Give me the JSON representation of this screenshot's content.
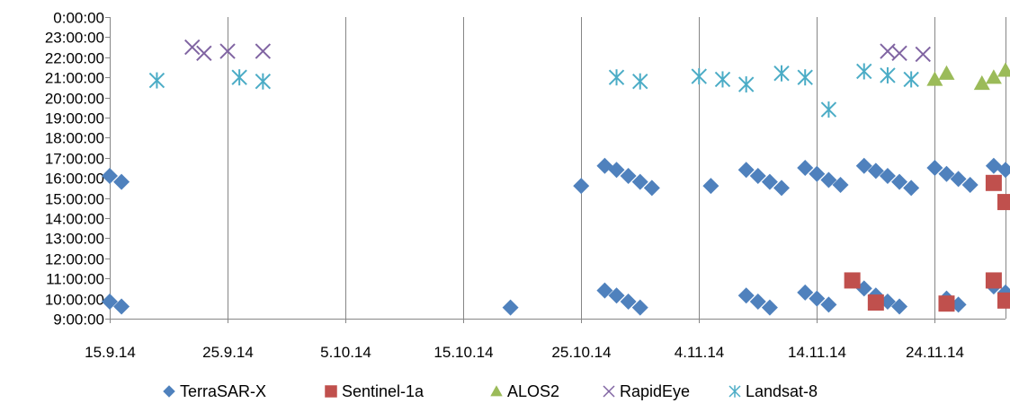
{
  "chart_data": {
    "type": "scatter",
    "x_axis": {
      "type": "date",
      "min": "2014-09-15",
      "max": "2014-11-30",
      "tick_labels": [
        "15.9.14",
        "25.9.14",
        "5.10.14",
        "15.10.14",
        "25.10.14",
        "4.11.14",
        "14.11.14",
        "24.11.14"
      ],
      "tick_dates": [
        "2014-09-15",
        "2014-09-25",
        "2014-10-05",
        "2014-10-15",
        "2014-10-25",
        "2014-11-04",
        "2014-11-14",
        "2014-11-24"
      ]
    },
    "y_axis": {
      "type": "time",
      "min_hours": 9,
      "max_hours": 24,
      "tick_labels": [
        "9:00:00",
        "10:00:00",
        "11:00:00",
        "12:00:00",
        "13:00:00",
        "14:00:00",
        "15:00:00",
        "16:00:00",
        "17:00:00",
        "18:00:00",
        "19:00:00",
        "20:00:00",
        "21:00:00",
        "22:00:00",
        "23:00:00",
        "0:00:00"
      ]
    },
    "grid": {
      "vertical": true,
      "horizontal": false
    },
    "legend_position": "bottom",
    "series": [
      {
        "name": "TerraSAR-X",
        "marker": "diamond",
        "color": "#4f81bd",
        "points": [
          [
            "2014-09-15",
            16.1
          ],
          [
            "2014-09-16",
            15.8
          ],
          [
            "2014-09-15",
            9.85
          ],
          [
            "2014-09-16",
            9.6
          ],
          [
            "2014-10-19",
            9.55
          ],
          [
            "2014-10-25",
            15.6
          ],
          [
            "2014-10-27",
            16.6
          ],
          [
            "2014-10-28",
            16.4
          ],
          [
            "2014-10-29",
            16.1
          ],
          [
            "2014-10-30",
            15.8
          ],
          [
            "2014-10-31",
            15.5
          ],
          [
            "2014-10-27",
            10.4
          ],
          [
            "2014-10-28",
            10.15
          ],
          [
            "2014-10-29",
            9.85
          ],
          [
            "2014-10-30",
            9.55
          ],
          [
            "2014-11-05",
            15.6
          ],
          [
            "2014-11-08",
            16.4
          ],
          [
            "2014-11-09",
            16.1
          ],
          [
            "2014-11-10",
            15.8
          ],
          [
            "2014-11-11",
            15.5
          ],
          [
            "2014-11-08",
            10.15
          ],
          [
            "2014-11-09",
            9.85
          ],
          [
            "2014-11-10",
            9.55
          ],
          [
            "2014-11-13",
            16.5
          ],
          [
            "2014-11-14",
            16.2
          ],
          [
            "2014-11-15",
            15.9
          ],
          [
            "2014-11-16",
            15.65
          ],
          [
            "2014-11-13",
            10.3
          ],
          [
            "2014-11-14",
            10.0
          ],
          [
            "2014-11-15",
            9.7
          ],
          [
            "2014-11-18",
            16.6
          ],
          [
            "2014-11-19",
            16.35
          ],
          [
            "2014-11-20",
            16.1
          ],
          [
            "2014-11-21",
            15.8
          ],
          [
            "2014-11-22",
            15.5
          ],
          [
            "2014-11-18",
            10.5
          ],
          [
            "2014-11-19",
            10.15
          ],
          [
            "2014-11-20",
            9.85
          ],
          [
            "2014-11-21",
            9.6
          ],
          [
            "2014-11-24",
            16.5
          ],
          [
            "2014-11-25",
            16.2
          ],
          [
            "2014-11-26",
            15.95
          ],
          [
            "2014-11-27",
            15.65
          ],
          [
            "2014-11-25",
            10.0
          ],
          [
            "2014-11-26",
            9.7
          ],
          [
            "2014-11-29",
            16.6
          ],
          [
            "2014-11-30",
            16.4
          ],
          [
            "2014-11-29",
            10.6
          ],
          [
            "2014-11-30",
            10.3
          ]
        ]
      },
      {
        "name": "Sentinel-1a",
        "marker": "square",
        "color": "#c0504d",
        "points": [
          [
            "2014-11-17",
            10.9
          ],
          [
            "2014-11-19",
            9.8
          ],
          [
            "2014-11-25",
            9.75
          ],
          [
            "2014-11-29",
            15.75
          ],
          [
            "2014-11-29",
            10.9
          ],
          [
            "2014-11-30",
            14.8
          ],
          [
            "2014-11-30",
            9.9
          ]
        ]
      },
      {
        "name": "ALOS2",
        "marker": "triangle",
        "color": "#9bbb59",
        "points": [
          [
            "2014-11-24",
            20.9
          ],
          [
            "2014-11-25",
            21.2
          ],
          [
            "2014-11-28",
            20.7
          ],
          [
            "2014-11-29",
            21.0
          ],
          [
            "2014-11-30",
            21.35
          ]
        ]
      },
      {
        "name": "RapidEye",
        "marker": "x",
        "color": "#8064a2",
        "points": [
          [
            "2014-09-22",
            22.5
          ],
          [
            "2014-09-23",
            22.2
          ],
          [
            "2014-09-25",
            22.3
          ],
          [
            "2014-09-28",
            22.3
          ],
          [
            "2014-11-20",
            22.3
          ],
          [
            "2014-11-21",
            22.2
          ],
          [
            "2014-11-23",
            22.15
          ]
        ]
      },
      {
        "name": "Landsat-8",
        "marker": "asterisk",
        "color": "#4bacc6",
        "points": [
          [
            "2014-09-19",
            20.85
          ],
          [
            "2014-09-26",
            21.0
          ],
          [
            "2014-09-28",
            20.8
          ],
          [
            "2014-10-28",
            21.0
          ],
          [
            "2014-10-30",
            20.8
          ],
          [
            "2014-11-04",
            21.05
          ],
          [
            "2014-11-06",
            20.9
          ],
          [
            "2014-11-08",
            20.65
          ],
          [
            "2014-11-11",
            21.2
          ],
          [
            "2014-11-13",
            21.0
          ],
          [
            "2014-11-15",
            19.4
          ],
          [
            "2014-11-18",
            21.3
          ],
          [
            "2014-11-20",
            21.1
          ],
          [
            "2014-11-22",
            20.9
          ]
        ]
      }
    ]
  }
}
